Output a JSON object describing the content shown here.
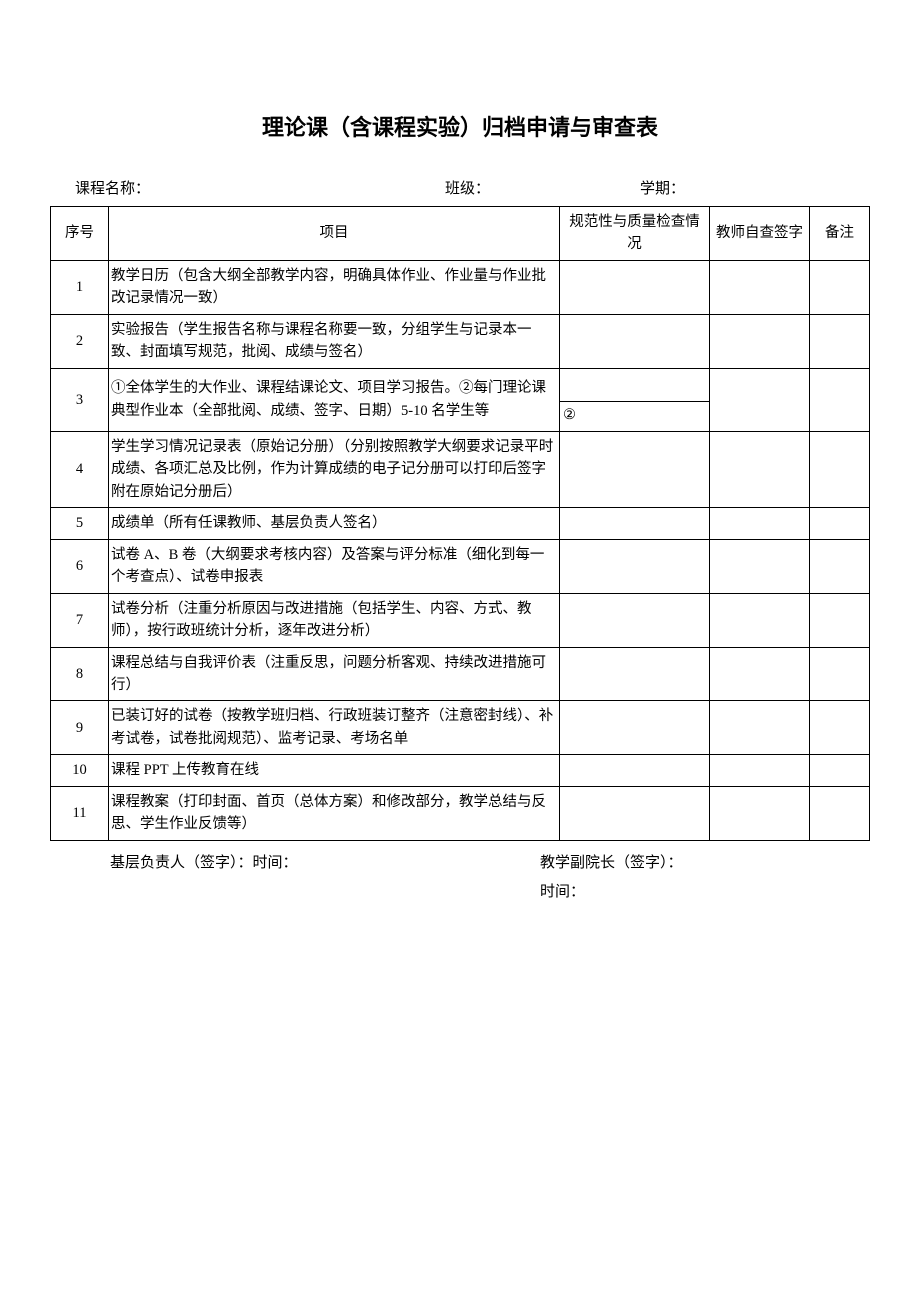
{
  "title": "理论课（含课程实验）归档申请与审查表",
  "header": {
    "course_label": "课程名称：",
    "class_label": "班级：",
    "term_label": "学期："
  },
  "table": {
    "columns": {
      "seq": "序号",
      "item": "项目",
      "check": "规范性与质量检查情况",
      "sign": "教师自查签字",
      "remark": "备注"
    },
    "rows": [
      {
        "seq": "1",
        "item": "教学日历（包含大纲全部教学内容，明确具体作业、作业量与作业批改记录情况一致）",
        "check": "",
        "sign": "",
        "remark": ""
      },
      {
        "seq": "2",
        "item": "实验报告（学生报告名称与课程名称要一致，分组学生与记录本一致、封面填写规范，批阅、成绩与签名）",
        "check": "",
        "sign": "",
        "remark": ""
      },
      {
        "seq": "3",
        "item": "①全体学生的大作业、课程结课论文、项目学习报告。②每门理论课典型作业本（全部批阅、成绩、签字、日期）5-10 名学生等",
        "check_split": true,
        "check_bottom": "②",
        "sign": "",
        "remark": ""
      },
      {
        "seq": "4",
        "item": "学生学习情况记录表（原始记分册）（分别按照教学大纲要求记录平时成绩、各项汇总及比例，作为计算成绩的电子记分册可以打印后签字附在原始记分册后）",
        "check": "",
        "sign": "",
        "remark": ""
      },
      {
        "seq": "5",
        "item": "成绩单（所有任课教师、基层负责人签名）",
        "check": "",
        "sign": "",
        "remark": ""
      },
      {
        "seq": "6",
        "item": "试卷 A、B 卷（大纲要求考核内容）及答案与评分标准（细化到每一个考查点）、试卷申报表",
        "check": "",
        "sign": "",
        "remark": ""
      },
      {
        "seq": "7",
        "item": "试卷分析（注重分析原因与改进措施（包括学生、内容、方式、教师），按行政班统计分析，逐年改进分析）",
        "check": "",
        "sign": "",
        "remark": ""
      },
      {
        "seq": "8",
        "item": "课程总结与自我评价表（注重反思，问题分析客观、持续改进措施可行）",
        "check": "",
        "sign": "",
        "remark": ""
      },
      {
        "seq": "9",
        "item": "已装订好的试卷（按教学班归档、行政班装订整齐（注意密封线）、补考试卷，试卷批阅规范）、监考记录、考场名单",
        "check": "",
        "sign": "",
        "remark": ""
      },
      {
        "seq": "10",
        "item": "课程 PPT 上传教育在线",
        "check": "",
        "sign": "",
        "remark": ""
      },
      {
        "seq": "11",
        "item": "课程教案（打印封面、首页（总体方案）和修改部分，教学总结与反思、学生作业反馈等）",
        "check": "",
        "sign": "",
        "remark": ""
      }
    ]
  },
  "footer": {
    "left": "基层负责人（签字）：时间：",
    "right_sign": "教学副院长（签字）：",
    "right_time": "时间："
  },
  "style": {
    "background_color": "#ffffff",
    "text_color": "#000000",
    "border_color": "#000000",
    "title_fontsize": 22,
    "body_fontsize": 14.5,
    "header_fontsize": 15
  }
}
